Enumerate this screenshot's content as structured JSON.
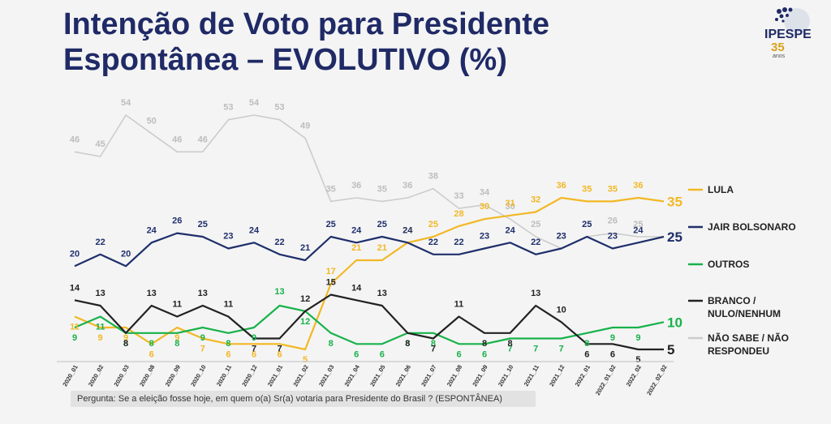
{
  "title": {
    "line1": "Intenção de Voto para Presidente",
    "line2": "Espontânea – EVOLUTIVO (%)"
  },
  "logo": {
    "brand": "IPESPE",
    "years": "35",
    "sub": "anos",
    "icon": "globe-dots-icon"
  },
  "footer": {
    "question": "Pergunta:  Se a eleição fosse hoje, em quem o(a) Sr(a) votaria para  Presidente do Brasil ? (ESPONTÂNEA)"
  },
  "chart_data": {
    "type": "line",
    "x": [
      "2020_01",
      "2020_02",
      "2020_03",
      "2020_08",
      "2020_09",
      "2020_10",
      "2020_11",
      "2020_12",
      "2021_01",
      "2021_02",
      "2021_03",
      "2021_04",
      "2021_05",
      "2021_06",
      "2021_07",
      "2021_08",
      "2021_09",
      "2021_10",
      "2021_11",
      "2021_12",
      "2022_01",
      "2022_01_02",
      "2022_02",
      "2022_02_02"
    ],
    "grid": false,
    "legend_position": "right",
    "series": [
      {
        "name": "NÃO SABE / NÃO RESPONDEU",
        "color": "#cccccc",
        "values": [
          46,
          45,
          54,
          50,
          46,
          46,
          53,
          54,
          53,
          49,
          35,
          36,
          35,
          36,
          38,
          33,
          34,
          30,
          25,
          23,
          25,
          26,
          25,
          25
        ]
      },
      {
        "name": "LULA",
        "color": "#f2b824",
        "values": [
          11,
          9,
          9,
          6,
          9,
          7,
          6,
          6,
          6,
          5,
          17,
          21,
          21,
          24,
          25,
          28,
          30,
          31,
          32,
          36,
          35,
          35,
          36,
          35
        ]
      },
      {
        "name": "JAIR BOLSONARO",
        "color": "#1f2f6b",
        "values": [
          20,
          22,
          20,
          24,
          26,
          25,
          23,
          24,
          22,
          21,
          25,
          24,
          25,
          24,
          22,
          22,
          23,
          24,
          22,
          23,
          25,
          23,
          24,
          25
        ]
      },
      {
        "name": "OUTROS",
        "color": "#17b24a",
        "values": [
          9,
          11,
          8,
          8,
          8,
          9,
          8,
          9,
          13,
          12,
          8,
          6,
          6,
          8,
          8,
          6,
          6,
          7,
          7,
          7,
          8,
          9,
          9,
          10
        ]
      },
      {
        "name": "BRANCO / NULO/NENHUM",
        "color": "#222222",
        "values": [
          14,
          13,
          8,
          13,
          11,
          13,
          11,
          7,
          7,
          12,
          15,
          14,
          13,
          8,
          7,
          11,
          8,
          8,
          13,
          10,
          6,
          6,
          5,
          5
        ]
      }
    ]
  }
}
